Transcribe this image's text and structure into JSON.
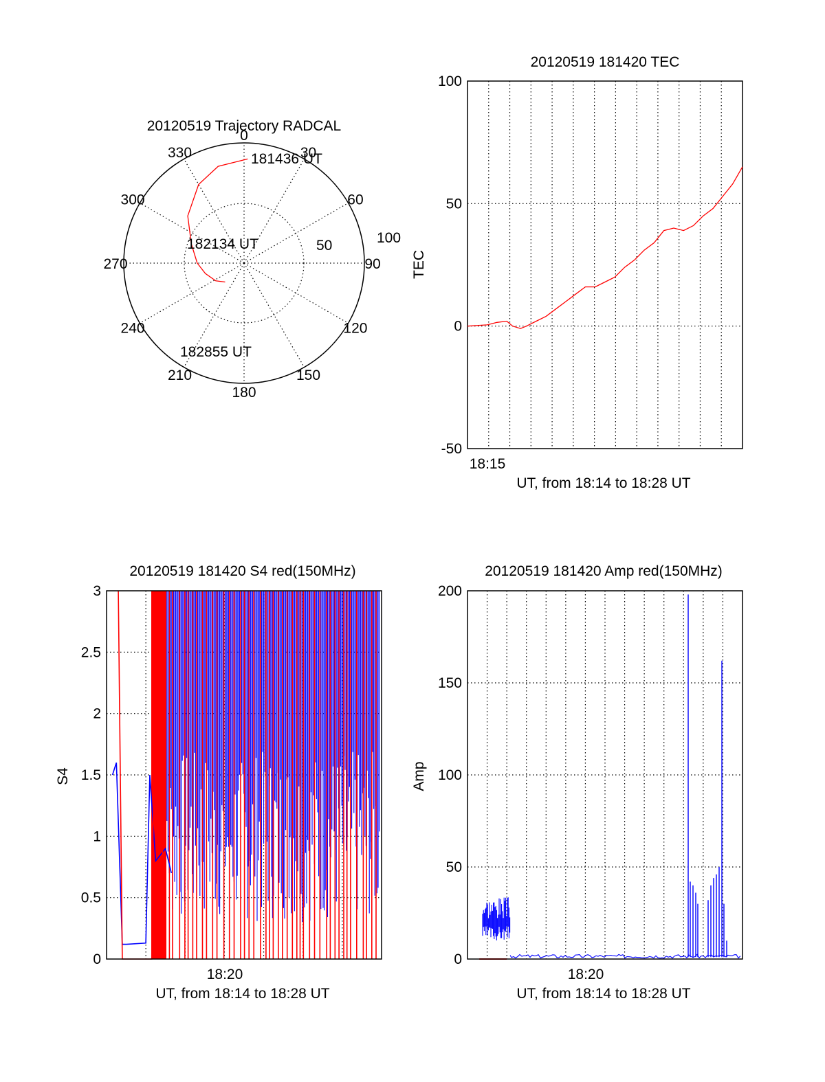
{
  "colors": {
    "primary": "#ff0000",
    "secondary": "#0000ff",
    "axis": "#000000"
  },
  "chart_data": [
    {
      "type": "polar",
      "title": "20120519 Trajectory RADCAL",
      "angle_labels": [
        "0",
        "30",
        "60",
        "90",
        "120",
        "150",
        "180",
        "210",
        "240",
        "270",
        "300",
        "330"
      ],
      "radius_labels": [
        "50",
        "100"
      ],
      "track_labels": [
        "181436 UT",
        "182134 UT",
        "182855 UT"
      ],
      "trajectory": {
        "azimuth_deg": [
          2,
          345,
          330,
          310,
          290,
          270,
          255,
          238,
          225
        ],
        "elevation_deg": [
          12,
          15,
          22,
          35,
          48,
          55,
          60,
          65,
          70
        ]
      }
    },
    {
      "type": "line",
      "title": "20120519 181420 TEC",
      "xlabel": "UT, from 18:14 to 18:28 UT",
      "ylabel": "TEC",
      "x_ticks": [
        "18:15"
      ],
      "y_ticks": [
        "-50",
        "0",
        "50",
        "100"
      ],
      "ylim": [
        -50,
        100
      ],
      "xlim_minutes": [
        0,
        14
      ],
      "series": [
        {
          "color": "#ff0000",
          "x_minutes": [
            0,
            1,
            1.5,
            2,
            2.3,
            2.7,
            3.0,
            3.5,
            4,
            4.5,
            5,
            5.5,
            6,
            6.5,
            7,
            7.5,
            8,
            8.5,
            9,
            9.5,
            10,
            10.5,
            11,
            11.5,
            12,
            12.5,
            13,
            13.5,
            14
          ],
          "values": [
            0,
            0.5,
            1.5,
            2,
            0,
            -1,
            0,
            2,
            4,
            7,
            10,
            13,
            16,
            16,
            18,
            20,
            24,
            27,
            31,
            34,
            39,
            40,
            39,
            41,
            45,
            48,
            53,
            58,
            65
          ]
        }
      ]
    },
    {
      "type": "line",
      "title": "20120519 181420 S4 red(150MHz)",
      "xlabel": "UT, from 18:14 to 18:28 UT",
      "ylabel": "S4",
      "x_ticks": [
        "18:20"
      ],
      "y_ticks": [
        "0",
        "0.5",
        "1",
        "1.5",
        "2",
        "2.5",
        "3"
      ],
      "ylim": [
        0,
        3
      ],
      "xlim_minutes": [
        0,
        14
      ],
      "series": [
        {
          "color": "#0000ff",
          "x_minutes": [
            0.3,
            0.5,
            0.8,
            1.0,
            2.0,
            2.2,
            2.5,
            3.0,
            3.3
          ],
          "values": [
            1.5,
            1.6,
            0.12,
            0.12,
            0.13,
            1.5,
            0.8,
            0.9,
            0.7
          ]
        },
        {
          "color": "#ff0000",
          "x_minutes": [
            0.6,
            0.8,
            2.3,
            2.5,
            3.0
          ],
          "values": [
            3,
            0,
            0,
            3,
            0
          ]
        }
      ]
    },
    {
      "type": "line",
      "title": "20120519 181420 Amp red(150MHz)",
      "xlabel": "UT, from 18:14 to 18:28 UT",
      "ylabel": "Amp",
      "x_ticks": [
        "18:20"
      ],
      "y_ticks": [
        "0",
        "50",
        "100",
        "150",
        "200"
      ],
      "ylim": [
        0,
        200
      ],
      "xlim_minutes": [
        0,
        14
      ],
      "series": [
        {
          "color": "#0000ff",
          "x_minutes": [
            0,
            0.5,
            0.7,
            1.0,
            1.5,
            1.9,
            2.0,
            3.0,
            5.0,
            8.0,
            10.8,
            11.0,
            11.3,
            11.5,
            12.5,
            12.7,
            12.9,
            13.2,
            14.0
          ],
          "values": [
            2,
            2,
            28,
            25,
            24,
            26,
            2,
            2,
            1,
            1,
            2,
            198,
            40,
            2,
            45,
            162,
            2,
            3,
            10
          ]
        },
        {
          "color": "#ff0000",
          "x_minutes": [
            0.6,
            2.0
          ],
          "values": [
            0,
            0
          ]
        }
      ]
    }
  ]
}
